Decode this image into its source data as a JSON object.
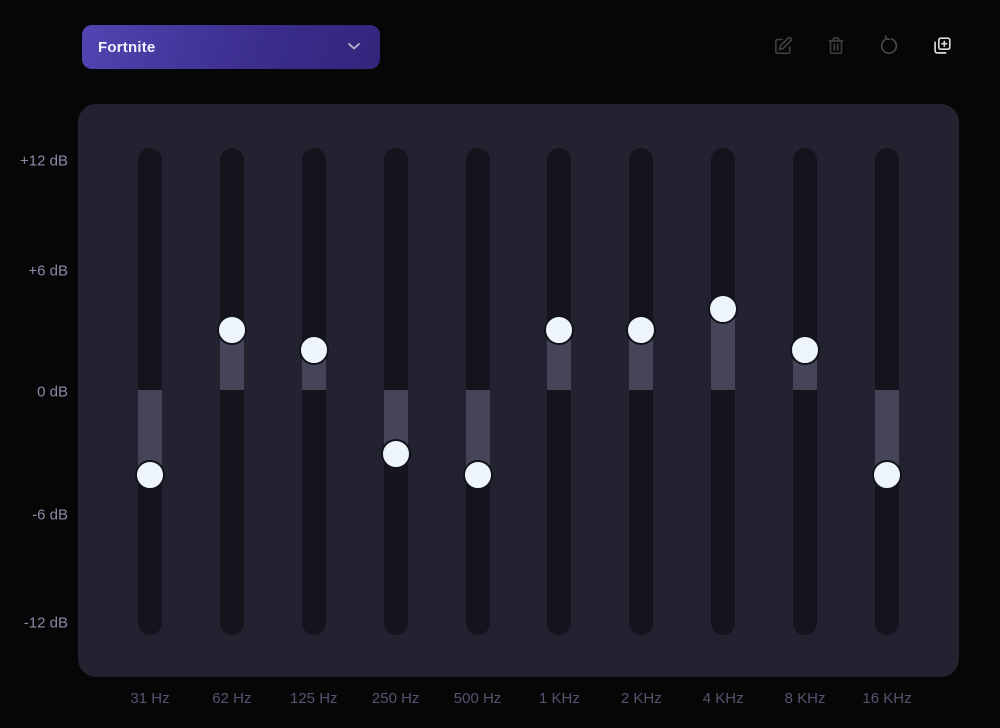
{
  "header": {
    "preset_dropdown": {
      "value": "Fortnite",
      "icon": "chevron-down-icon"
    },
    "actions": [
      {
        "icon": "edit-icon"
      },
      {
        "icon": "trash-icon"
      },
      {
        "icon": "reset-icon"
      },
      {
        "icon": "duplicate-plus-icon"
      }
    ]
  },
  "equalizer": {
    "y_axis_labels": [
      "+12 dB",
      "+6 dB",
      "0 dB",
      "-6 dB",
      "-12 dB"
    ],
    "range_db": [
      -12,
      12
    ],
    "bands": [
      {
        "label": "31 Hz",
        "value_db": -4
      },
      {
        "label": "62 Hz",
        "value_db": 3
      },
      {
        "label": "125 Hz",
        "value_db": 2
      },
      {
        "label": "250 Hz",
        "value_db": -3
      },
      {
        "label": "500 Hz",
        "value_db": -4
      },
      {
        "label": "1 KHz",
        "value_db": 3
      },
      {
        "label": "2 KHz",
        "value_db": 3
      },
      {
        "label": "4 KHz",
        "value_db": 4
      },
      {
        "label": "8 KHz",
        "value_db": 2
      },
      {
        "label": "16 KHz",
        "value_db": -4
      }
    ]
  },
  "colors": {
    "page_background": "#060606",
    "panel_background": "#232230",
    "track": "#15141c",
    "fill": "#464459",
    "knob": "#edf5fb",
    "accent_gradient_start": "#5145b2",
    "accent_gradient_end": "#32267c",
    "db_tick_text": "#8b8aa8",
    "freq_label_text": "#56546f",
    "muted_icon": "#3e3e43",
    "bright_icon": "#dcdcdf"
  }
}
